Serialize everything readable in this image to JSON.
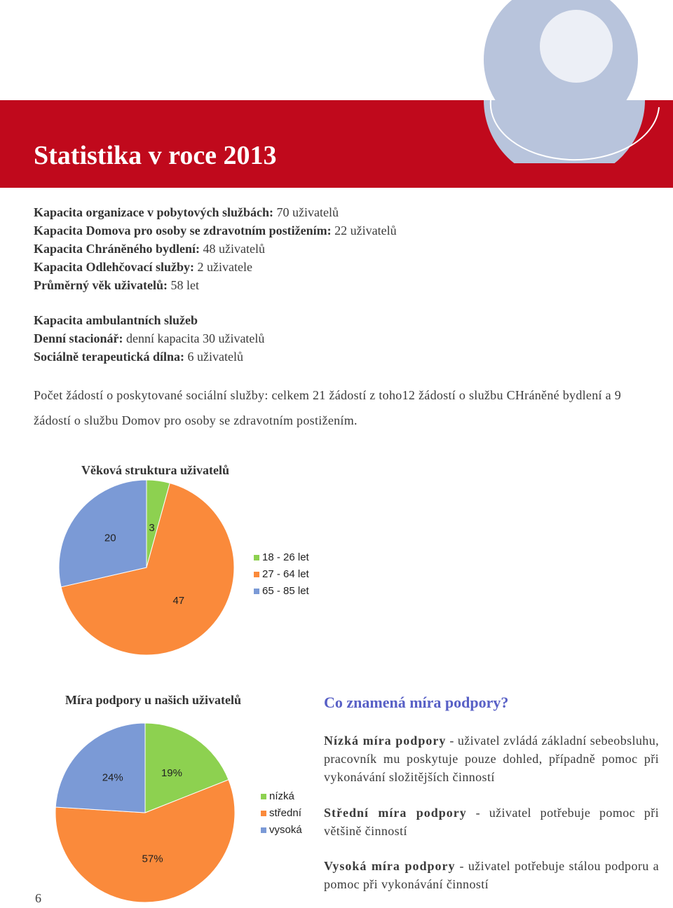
{
  "header": {
    "title": "Statistika v roce 2013"
  },
  "capacity": [
    {
      "label": "Kapacita organizace v pobytových službách:",
      "value": "70 uživatelů"
    },
    {
      "label": "Kapacita Domova pro osoby se zdravotním postižením:",
      "value": "22 uživatelů"
    },
    {
      "label": "Kapacita Chráněného bydlení:",
      "value": "48 uživatelů"
    },
    {
      "label": "Kapacita Odlehčovací služby:",
      "value": "2 uživatele"
    },
    {
      "label": "Průměrný věk uživatelů:",
      "value": "58 let"
    }
  ],
  "ambulant": {
    "heading": "Kapacita ambulantních služeb",
    "items": [
      {
        "label": "Denní stacionář:",
        "value": "denní kapacita 30 uživatelů"
      },
      {
        "label": "Sociálně terapeutická dílna:",
        "value": "6 uživatelů"
      }
    ]
  },
  "requests": "Počet žádostí o poskytované sociální služby: celkem 21 žádostí z toho12 žádostí o službu CHráněné bydlení a 9 žádostí o službu Domov pro osoby se zdravotním postižením.",
  "chart_data": [
    {
      "type": "pie",
      "title": "Věková struktura uživatelů",
      "categories": [
        "18 - 26 let",
        "27 - 64 let",
        "65 - 85 let"
      ],
      "values": [
        3,
        47,
        20
      ],
      "colors": [
        "#8dd150",
        "#fa8a3b",
        "#7b9ad6"
      ]
    },
    {
      "type": "pie",
      "title": "Míra podpory u našich uživatelů",
      "categories": [
        "nízká",
        "střední",
        "vysoká"
      ],
      "values": [
        19,
        57,
        24
      ],
      "value_labels": [
        "19%",
        "57%",
        "24%"
      ],
      "colors": [
        "#8dd150",
        "#fa8a3b",
        "#7b9ad6"
      ]
    }
  ],
  "explain": {
    "heading": "Co znamená míra podpory?",
    "items": [
      {
        "term": "Nízká míra podpory",
        "text": "- uživatel zvládá základní sebeobsluhu, pracovník mu poskytuje pouze dohled, případně pomoc při vykonávání složitějších činností"
      },
      {
        "term": "Střední míra podpory",
        "text": "- uživatel potřebuje pomoc při většině činností"
      },
      {
        "term": "Vysoká míra podpory",
        "text": "- uživatel potřebuje stálou podporu a pomoc při vykonávání činností"
      }
    ]
  },
  "page_number": "6"
}
